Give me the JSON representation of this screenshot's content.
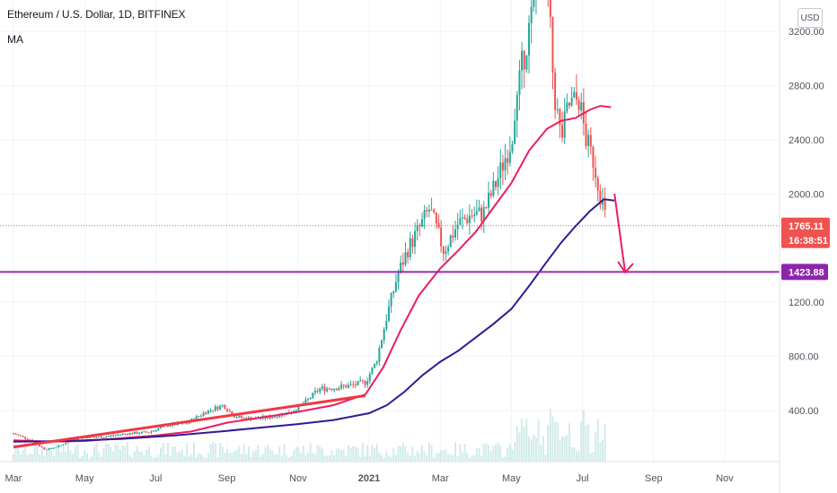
{
  "header": {
    "title": "Ethereum / U.S. Dollar, 1D, BITFINEX",
    "indicator": "MA",
    "currency_button": "USD"
  },
  "colors": {
    "up": "#26a69a",
    "down": "#ef5350",
    "ma_short": "#e91e63",
    "ma_long": "#311b92",
    "trend_line": "#f23645",
    "support_line": "#9c27b0",
    "last_price_tag": "#ef5350",
    "support_tag": "#8e24aa",
    "volume": "#b2dfdb"
  },
  "tags": {
    "last_price": "1765.11",
    "countdown": "16:38:51",
    "support_level": "1423.88"
  },
  "chart_data": {
    "type": "candlestick",
    "title": "Ethereum / U.S. Dollar, 1D, BITFINEX",
    "ylim": [
      0,
      3450
    ],
    "y_ticks": [
      "400.00",
      "800.00",
      "1200.00",
      "2000.00",
      "2400.00",
      "2800.00",
      "3200.00"
    ],
    "x_ticks": [
      "Mar",
      "May",
      "Jul",
      "Sep",
      "Nov",
      "2021",
      "Mar",
      "May",
      "Jul",
      "Sep",
      "Nov"
    ],
    "x_tick_months": [
      0,
      2,
      4,
      6,
      8,
      10,
      12,
      14,
      16,
      18,
      20
    ],
    "price_path": [
      [
        0,
        230
      ],
      [
        0.5,
        180
      ],
      [
        0.9,
        110
      ],
      [
        1.3,
        140
      ],
      [
        1.8,
        200
      ],
      [
        2.5,
        205
      ],
      [
        3.2,
        230
      ],
      [
        3.8,
        240
      ],
      [
        4.3,
        290
      ],
      [
        4.9,
        310
      ],
      [
        5.4,
        390
      ],
      [
        5.9,
        440
      ],
      [
        6.2,
        360
      ],
      [
        6.5,
        340
      ],
      [
        7.2,
        350
      ],
      [
        7.8,
        390
      ],
      [
        8.2,
        460
      ],
      [
        8.6,
        560
      ],
      [
        9.1,
        570
      ],
      [
        9.6,
        590
      ],
      [
        9.9,
        610
      ],
      [
        10.2,
        760
      ],
      [
        10.5,
        1100
      ],
      [
        10.8,
        1400
      ],
      [
        11.1,
        1600
      ],
      [
        11.4,
        1740
      ],
      [
        11.7,
        1890
      ],
      [
        12.1,
        1580
      ],
      [
        12.5,
        1780
      ],
      [
        12.9,
        1850
      ],
      [
        13.2,
        1850
      ],
      [
        13.6,
        2100
      ],
      [
        14.0,
        2400
      ],
      [
        14.3,
        2950
      ],
      [
        14.6,
        3350
      ],
      [
        14.8,
        3800
      ],
      [
        15.0,
        3600
      ],
      [
        15.2,
        2750
      ],
      [
        15.4,
        2400
      ],
      [
        15.6,
        2650
      ],
      [
        15.9,
        2700
      ],
      [
        16.1,
        2400
      ],
      [
        16.3,
        2250
      ],
      [
        16.5,
        2000
      ],
      [
        16.7,
        1765
      ]
    ],
    "ma_short_path": [
      [
        0,
        180
      ],
      [
        1,
        170
      ],
      [
        2,
        175
      ],
      [
        3,
        195
      ],
      [
        4,
        215
      ],
      [
        5,
        245
      ],
      [
        6,
        310
      ],
      [
        7,
        350
      ],
      [
        8,
        390
      ],
      [
        9,
        440
      ],
      [
        9.9,
        520
      ],
      [
        10.4,
        720
      ],
      [
        10.9,
        1000
      ],
      [
        11.4,
        1250
      ],
      [
        12.0,
        1450
      ],
      [
        12.5,
        1580
      ],
      [
        13.0,
        1720
      ],
      [
        13.5,
        1900
      ],
      [
        14.0,
        2080
      ],
      [
        14.5,
        2320
      ],
      [
        15.0,
        2480
      ],
      [
        15.4,
        2540
      ],
      [
        15.8,
        2560
      ],
      [
        16.2,
        2620
      ],
      [
        16.5,
        2650
      ],
      [
        16.8,
        2640
      ]
    ],
    "ma_long_path": [
      [
        0,
        170
      ],
      [
        1.5,
        175
      ],
      [
        3,
        190
      ],
      [
        4.5,
        215
      ],
      [
        6,
        250
      ],
      [
        7,
        275
      ],
      [
        8,
        300
      ],
      [
        9,
        330
      ],
      [
        10,
        380
      ],
      [
        10.5,
        440
      ],
      [
        11,
        540
      ],
      [
        11.5,
        660
      ],
      [
        12,
        760
      ],
      [
        12.5,
        840
      ],
      [
        13,
        940
      ],
      [
        13.5,
        1040
      ],
      [
        14,
        1150
      ],
      [
        14.5,
        1320
      ],
      [
        15,
        1500
      ],
      [
        15.4,
        1640
      ],
      [
        15.8,
        1760
      ],
      [
        16.2,
        1870
      ],
      [
        16.6,
        1960
      ],
      [
        16.9,
        1950
      ]
    ],
    "trend_line": [
      [
        0,
        130
      ],
      [
        9.9,
        510
      ]
    ],
    "support_level": 1423.88,
    "last_price": 1765.11,
    "arrow": {
      "from": [
        16.9,
        2000
      ],
      "to": [
        17.2,
        1420
      ]
    }
  }
}
